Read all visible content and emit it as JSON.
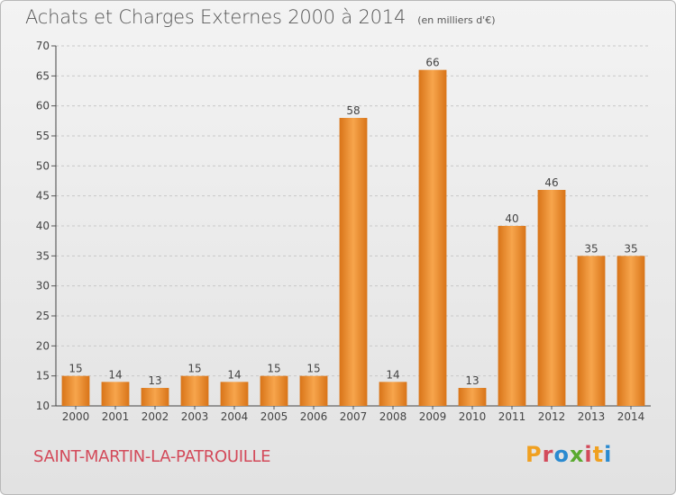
{
  "header": {
    "title": "Achats et Charges Externes 2000 à 2014",
    "unit": "(en milliers d'€)"
  },
  "footer": {
    "commune": "SAINT-MARTIN-LA-PATROUILLE",
    "logo_text": "Proxiti"
  },
  "colors": {
    "bar_light": "#f7a54c",
    "bar_dark": "#d87418",
    "commune_text": "#d34a5a",
    "logo_letters": [
      "#f0a020",
      "#d34a5a",
      "#2a8ad0",
      "#5aaa30",
      "#d34a5a",
      "#f0a020",
      "#2a8ad0"
    ]
  },
  "chart_data": {
    "type": "bar",
    "categories": [
      "2000",
      "2001",
      "2002",
      "2003",
      "2004",
      "2005",
      "2006",
      "2007",
      "2008",
      "2009",
      "2010",
      "2011",
      "2012",
      "2013",
      "2014"
    ],
    "values": [
      15,
      14,
      13,
      15,
      14,
      15,
      15,
      58,
      14,
      66,
      13,
      40,
      46,
      35,
      35
    ],
    "title": "Achats et Charges Externes 2000 à 2014",
    "ylim": [
      10,
      70
    ],
    "yticks": [
      10,
      15,
      20,
      25,
      30,
      35,
      40,
      45,
      50,
      55,
      60,
      65,
      70
    ],
    "grid": true,
    "legend": "none"
  }
}
